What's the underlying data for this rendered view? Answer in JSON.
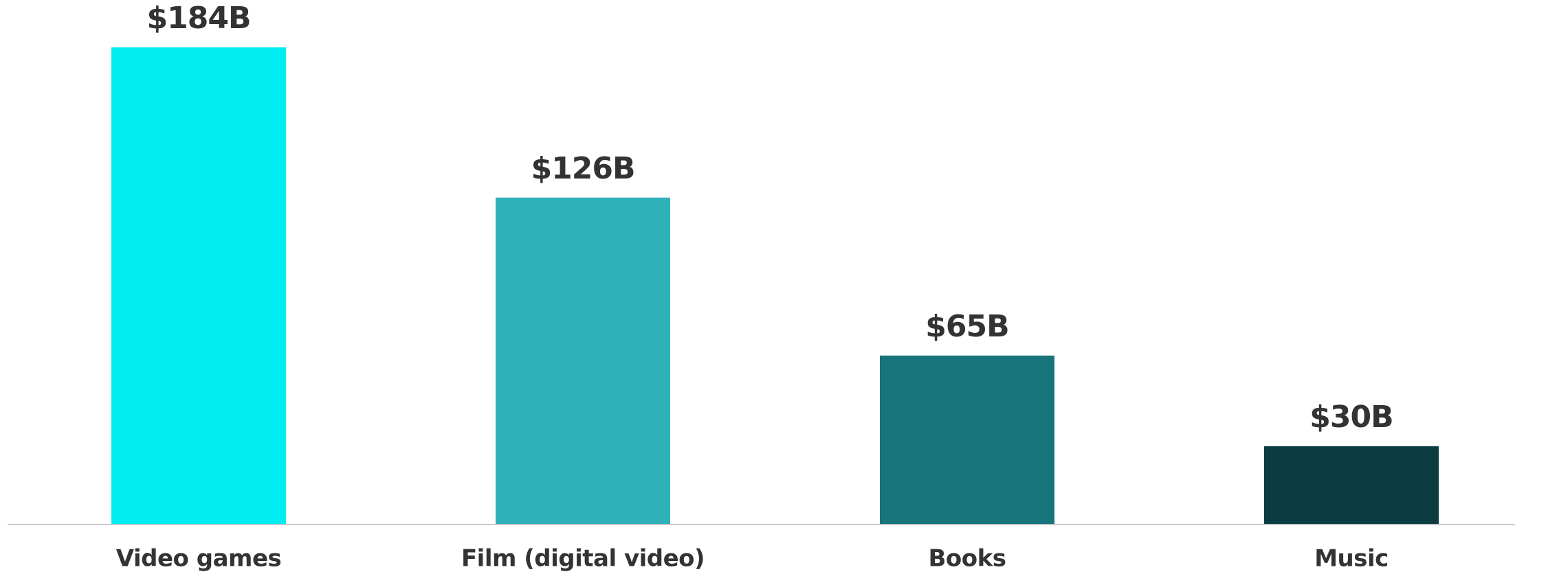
{
  "chart_data": {
    "type": "bar",
    "categories": [
      "Video games",
      "Film (digital video)",
      "Books",
      "Music"
    ],
    "values": [
      184,
      126,
      65,
      30
    ],
    "value_labels": [
      "$184B",
      "$126B",
      "$65B",
      "$30B"
    ],
    "colors": [
      "#00eef2",
      "#2fb1ba",
      "#16747a",
      "#0b3c42"
    ]
  }
}
